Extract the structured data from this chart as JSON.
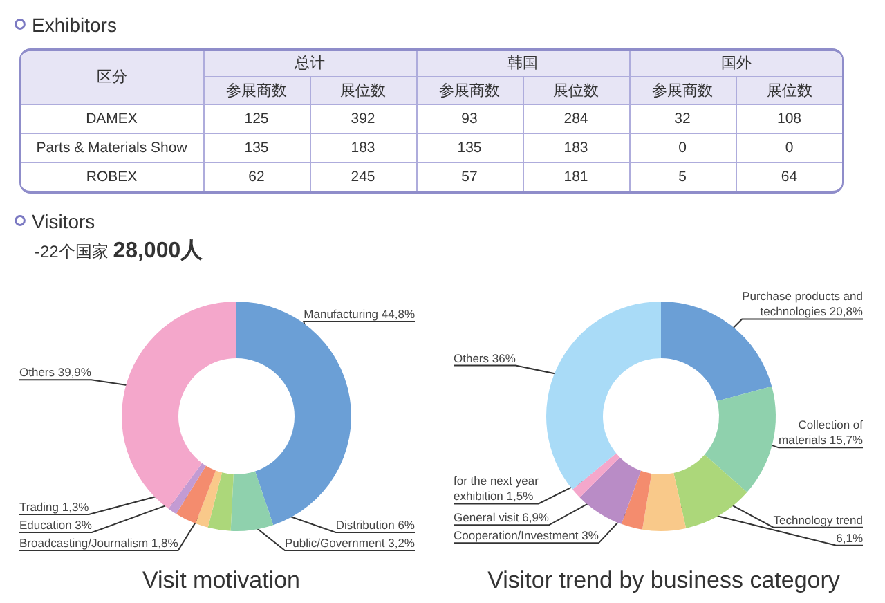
{
  "chart_data": [
    {
      "type": "heatmap",
      "title": "Exhibitors",
      "ylabel": "区分",
      "annotations": [
        "总计",
        "韩国",
        "国外"
      ],
      "categories": [
        "参展商数",
        "展位数",
        "参展商数",
        "展位数",
        "参展商数",
        "展位数"
      ],
      "y_categories": [
        "DAMEX",
        "Parts & Materials Show",
        "ROBEX"
      ],
      "cells": [
        [
          125,
          392,
          93,
          284,
          32,
          108
        ],
        [
          135,
          183,
          135,
          183,
          0,
          0
        ],
        [
          62,
          245,
          57,
          181,
          5,
          64
        ]
      ],
      "data_labels": true
    },
    {
      "type": "other",
      "title": "Visitors",
      "subtitle": "-22个国家 28,000人"
    },
    {
      "type": "donut",
      "title": "Visit motivation",
      "categories": [
        "Manufacturing",
        "Distribution",
        "Public/Government",
        "Broadcasting/Journalism",
        "Education",
        "Trading",
        "Others"
      ],
      "values": [
        44.8,
        6,
        3.2,
        1.8,
        3,
        1.3,
        39.9
      ],
      "value_labels": [
        "44,8%",
        "6%",
        "3,2%",
        "1,8%",
        "3%",
        "1,3%",
        "39,9%"
      ],
      "colors": [
        "#6b9fd6",
        "#8fd1ad",
        "#acd77a",
        "#f9c98a",
        "#f48c6e",
        "#c39bd3",
        "#f4a7cb"
      ]
    },
    {
      "type": "donut",
      "title": "Visitor trend by business category",
      "categories": [
        "Purchase products and technologies",
        "Collection of materials",
        "Technology trend",
        null,
        "Cooperation/Investment",
        "General visit",
        "for the next year exhibition",
        "Others"
      ],
      "values": [
        20.8,
        15.7,
        10,
        6.1,
        3,
        6.9,
        1.5,
        36
      ],
      "value_labels": [
        "20,8%",
        "15,7%",
        null,
        "6,1%",
        "3%",
        "6,9%",
        "1,5%",
        "36%"
      ],
      "colors": [
        "#6b9fd6",
        "#8fd1ad",
        "#acd77a",
        "#f9c98a",
        "#f48c6e",
        "#b98cc6",
        "#f4a7cb",
        "#a9dbf7"
      ]
    }
  ]
}
